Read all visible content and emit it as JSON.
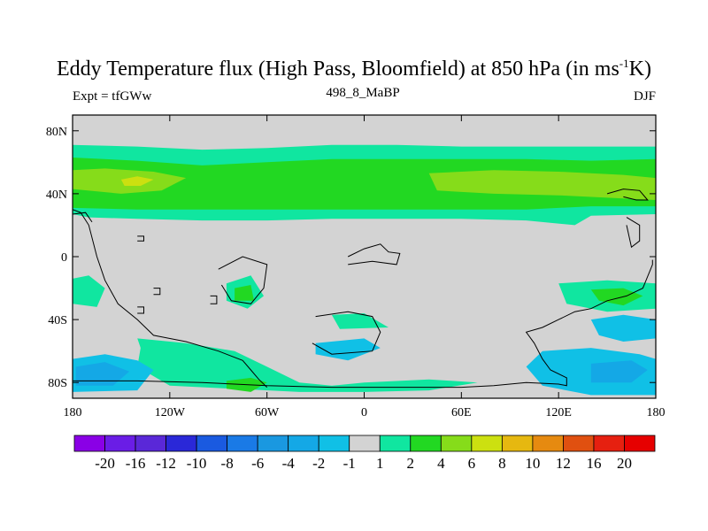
{
  "title": {
    "main": "Eddy Temperature flux (High Pass, Bloomfield) at 850 hPa (in ms",
    "sup": "-1",
    "tail": "K)"
  },
  "subtitles": {
    "left": "Expt = tfGWw",
    "center": "498_8_MaBP",
    "right": "DJF"
  },
  "chart_data": {
    "type": "heatmap",
    "title": "Eddy Temperature flux (High Pass, Bloomfield) at 850 hPa (in ms-1K)",
    "xlim": [
      -180,
      180
    ],
    "ylim": [
      -90,
      90
    ],
    "x_ticks": [
      {
        "value": -180,
        "label": "180"
      },
      {
        "value": -120,
        "label": "120W"
      },
      {
        "value": -60,
        "label": "60W"
      },
      {
        "value": 0,
        "label": "0"
      },
      {
        "value": 60,
        "label": "60E"
      },
      {
        "value": 120,
        "label": "120E"
      },
      {
        "value": 180,
        "label": "180"
      }
    ],
    "y_ticks": [
      {
        "value": 80,
        "label": "80N"
      },
      {
        "value": 40,
        "label": "40N"
      },
      {
        "value": 0,
        "label": "0"
      },
      {
        "value": -40,
        "label": "40S"
      },
      {
        "value": -80,
        "label": "80S"
      }
    ],
    "background_color": "#d3d3d3",
    "colorbar": {
      "labels": [
        "-20",
        "-16",
        "-12",
        "-10",
        "-8",
        "-6",
        "-4",
        "-2",
        "-1",
        "1",
        "2",
        "4",
        "6",
        "8",
        "10",
        "12",
        "16",
        "20"
      ],
      "colors": [
        "#8a00e6",
        "#6a1de6",
        "#5a28d8",
        "#2a28d8",
        "#1a5ae0",
        "#1a7ae6",
        "#1a98e0",
        "#14a8e6",
        "#10c0e6",
        "#d3d3d3",
        "#10e6a0",
        "#22d822",
        "#86dc1a",
        "#cce010",
        "#e6b810",
        "#e68a10",
        "#e05010",
        "#e62010",
        "#e60000"
      ]
    },
    "regions": [
      {
        "level": "1",
        "color": "#10e6a0",
        "points": [
          [
            -180,
            71
          ],
          [
            -140,
            70
          ],
          [
            -100,
            68
          ],
          [
            -60,
            69
          ],
          [
            -20,
            71
          ],
          [
            20,
            71
          ],
          [
            60,
            70
          ],
          [
            100,
            70
          ],
          [
            140,
            70
          ],
          [
            180,
            70
          ],
          [
            180,
            27
          ],
          [
            140,
            26
          ],
          [
            130,
            20
          ],
          [
            100,
            23
          ],
          [
            60,
            24
          ],
          [
            20,
            24
          ],
          [
            -20,
            24
          ],
          [
            -60,
            23
          ],
          [
            -100,
            23
          ],
          [
            -140,
            24
          ],
          [
            -170,
            25
          ],
          [
            -180,
            27
          ]
        ]
      },
      {
        "level": "2",
        "color": "#22d822",
        "points": [
          [
            -180,
            63
          ],
          [
            -140,
            61
          ],
          [
            -100,
            58
          ],
          [
            -60,
            60
          ],
          [
            -20,
            62
          ],
          [
            20,
            62
          ],
          [
            60,
            62
          ],
          [
            100,
            62
          ],
          [
            140,
            61
          ],
          [
            180,
            62
          ],
          [
            180,
            32
          ],
          [
            140,
            32
          ],
          [
            100,
            30
          ],
          [
            60,
            30
          ],
          [
            20,
            30
          ],
          [
            -20,
            30
          ],
          [
            -60,
            30
          ],
          [
            -100,
            30
          ],
          [
            -140,
            30
          ],
          [
            -180,
            31
          ]
        ]
      },
      {
        "level": "4",
        "color": "#86dc1a",
        "points": [
          [
            -180,
            55
          ],
          [
            -160,
            56
          ],
          [
            -130,
            54
          ],
          [
            -110,
            50
          ],
          [
            -125,
            42
          ],
          [
            -150,
            40
          ],
          [
            -180,
            43
          ]
        ]
      },
      {
        "level": "4",
        "color": "#86dc1a",
        "points": [
          [
            40,
            53
          ],
          [
            80,
            55
          ],
          [
            120,
            54
          ],
          [
            160,
            52
          ],
          [
            180,
            50
          ],
          [
            180,
            36
          ],
          [
            160,
            37
          ],
          [
            120,
            39
          ],
          [
            80,
            40
          ],
          [
            45,
            42
          ]
        ]
      },
      {
        "level": "6",
        "color": "#cce010",
        "points": [
          [
            -150,
            49
          ],
          [
            -140,
            51
          ],
          [
            -130,
            49
          ],
          [
            -138,
            45
          ],
          [
            -148,
            45
          ]
        ]
      },
      {
        "level": "1",
        "color": "#10e6a0",
        "points": [
          [
            -180,
            -14
          ],
          [
            -170,
            -12
          ],
          [
            -160,
            -20
          ],
          [
            -165,
            -32
          ],
          [
            -180,
            -30
          ]
        ]
      },
      {
        "level": "1",
        "color": "#10e6a0",
        "points": [
          [
            -85,
            -17
          ],
          [
            -70,
            -12
          ],
          [
            -62,
            -25
          ],
          [
            -72,
            -33
          ],
          [
            -85,
            -28
          ]
        ]
      },
      {
        "level": "2",
        "color": "#22d822",
        "points": [
          [
            -80,
            -20
          ],
          [
            -70,
            -18
          ],
          [
            -68,
            -28
          ],
          [
            -80,
            -28
          ]
        ]
      },
      {
        "level": "1",
        "color": "#10e6a0",
        "points": [
          [
            -20,
            -37
          ],
          [
            0,
            -36
          ],
          [
            15,
            -45
          ],
          [
            -15,
            -46
          ]
        ]
      },
      {
        "level": "1",
        "color": "#10e6a0",
        "points": [
          [
            120,
            -17
          ],
          [
            150,
            -15
          ],
          [
            180,
            -17
          ],
          [
            180,
            -33
          ],
          [
            150,
            -35
          ],
          [
            125,
            -30
          ]
        ]
      },
      {
        "level": "2",
        "color": "#22d822",
        "points": [
          [
            140,
            -21
          ],
          [
            160,
            -20
          ],
          [
            172,
            -25
          ],
          [
            160,
            -31
          ],
          [
            145,
            -28
          ]
        ]
      },
      {
        "level": "1",
        "color": "#10e6a0",
        "points": [
          [
            -140,
            -52
          ],
          [
            -110,
            -55
          ],
          [
            -80,
            -60
          ],
          [
            -60,
            -70
          ],
          [
            -40,
            -80
          ],
          [
            -20,
            -82
          ],
          [
            0,
            -80
          ],
          [
            40,
            -78
          ],
          [
            70,
            -80
          ],
          [
            40,
            -85
          ],
          [
            0,
            -86
          ],
          [
            -40,
            -86
          ],
          [
            -80,
            -84
          ],
          [
            -120,
            -82
          ],
          [
            -140,
            -70
          ],
          [
            -138,
            -58
          ]
        ]
      },
      {
        "level": "2",
        "color": "#22d822",
        "points": [
          [
            -85,
            -79
          ],
          [
            -70,
            -77
          ],
          [
            -60,
            -80
          ],
          [
            -70,
            -86
          ],
          [
            -85,
            -84
          ]
        ]
      },
      {
        "level": "-1",
        "color": "#10c0e6",
        "points": [
          [
            -180,
            -65
          ],
          [
            -160,
            -62
          ],
          [
            -140,
            -66
          ],
          [
            -130,
            -72
          ],
          [
            -140,
            -85
          ],
          [
            -180,
            -86
          ]
        ]
      },
      {
        "level": "-2",
        "color": "#14a8e6",
        "points": [
          [
            -178,
            -70
          ],
          [
            -160,
            -67
          ],
          [
            -145,
            -73
          ],
          [
            -155,
            -82
          ],
          [
            -178,
            -82
          ]
        ]
      },
      {
        "level": "-1",
        "color": "#10c0e6",
        "points": [
          [
            -30,
            -55
          ],
          [
            0,
            -52
          ],
          [
            10,
            -58
          ],
          [
            -10,
            -66
          ],
          [
            -30,
            -62
          ]
        ]
      },
      {
        "level": "-1",
        "color": "#10c0e6",
        "points": [
          [
            140,
            -40
          ],
          [
            160,
            -37
          ],
          [
            180,
            -40
          ],
          [
            180,
            -52
          ],
          [
            160,
            -54
          ],
          [
            145,
            -50
          ]
        ]
      },
      {
        "level": "-1",
        "color": "#10c0e6",
        "points": [
          [
            110,
            -60
          ],
          [
            140,
            -58
          ],
          [
            170,
            -62
          ],
          [
            180,
            -65
          ],
          [
            180,
            -88
          ],
          [
            140,
            -88
          ],
          [
            110,
            -82
          ],
          [
            100,
            -70
          ]
        ]
      },
      {
        "level": "-2",
        "color": "#14a8e6",
        "points": [
          [
            140,
            -68
          ],
          [
            165,
            -66
          ],
          [
            175,
            -72
          ],
          [
            165,
            -80
          ],
          [
            140,
            -80
          ]
        ]
      }
    ],
    "coastlines": [
      [
        [
          -180,
          -79
        ],
        [
          -140,
          -79
        ],
        [
          -100,
          -80
        ],
        [
          -60,
          -82
        ],
        [
          -20,
          -83
        ],
        [
          20,
          -83
        ],
        [
          60,
          -83
        ],
        [
          80,
          -82
        ],
        [
          100,
          -80
        ],
        [
          120,
          -81
        ],
        [
          125,
          -82
        ],
        [
          125,
          -77
        ],
        [
          115,
          -72
        ],
        [
          110,
          -65
        ],
        [
          105,
          -55
        ],
        [
          100,
          -48
        ],
        [
          110,
          -45
        ],
        [
          120,
          -40
        ],
        [
          130,
          -35
        ],
        [
          140,
          -33
        ],
        [
          150,
          -28
        ],
        [
          162,
          -25
        ],
        [
          172,
          -20
        ],
        [
          178,
          -5
        ],
        [
          178,
          -2
        ]
      ],
      [
        [
          -180,
          30
        ],
        [
          -175,
          28
        ],
        [
          -170,
          20
        ],
        [
          -165,
          0
        ],
        [
          -160,
          -15
        ],
        [
          -152,
          -30
        ],
        [
          -140,
          -40
        ],
        [
          -130,
          -50
        ],
        [
          -110,
          -54
        ],
        [
          -90,
          -60
        ],
        [
          -75,
          -66
        ],
        [
          -70,
          -72
        ],
        [
          -65,
          -78
        ],
        [
          -60,
          -83
        ]
      ],
      [
        [
          -90,
          -8
        ],
        [
          -75,
          0
        ],
        [
          -60,
          -5
        ],
        [
          -62,
          -20
        ],
        [
          -70,
          -30
        ],
        [
          -82,
          -28
        ],
        [
          -88,
          -18
        ]
      ],
      [
        [
          -10,
          0
        ],
        [
          0,
          5
        ],
        [
          10,
          8
        ],
        [
          15,
          3
        ],
        [
          22,
          2
        ],
        [
          20,
          -5
        ],
        [
          5,
          -3
        ],
        [
          -10,
          -5
        ]
      ],
      [
        [
          -30,
          -38
        ],
        [
          -10,
          -35
        ],
        [
          5,
          -38
        ],
        [
          10,
          -48
        ],
        [
          5,
          -60
        ],
        [
          -20,
          -62
        ],
        [
          -32,
          -55
        ]
      ],
      [
        [
          150,
          40
        ],
        [
          160,
          43
        ],
        [
          170,
          42
        ],
        [
          175,
          36
        ],
        [
          168,
          36
        ],
        [
          160,
          38
        ]
      ],
      [
        [
          -180,
          27
        ],
        [
          -172,
          28
        ],
        [
          -168,
          22
        ]
      ],
      [
        [
          162,
          25
        ],
        [
          170,
          20
        ],
        [
          170,
          10
        ],
        [
          165,
          6
        ],
        [
          162,
          20
        ]
      ],
      [
        [
          -140,
          13
        ],
        [
          -136,
          13
        ],
        [
          -136,
          10
        ],
        [
          -140,
          10
        ]
      ],
      [
        [
          -130,
          -20
        ],
        [
          -126,
          -20
        ],
        [
          -126,
          -24
        ],
        [
          -130,
          -24
        ]
      ],
      [
        [
          -95,
          -25
        ],
        [
          -91,
          -25
        ],
        [
          -91,
          -30
        ],
        [
          -95,
          -30
        ]
      ],
      [
        [
          -140,
          -32
        ],
        [
          -136,
          -32
        ],
        [
          -136,
          -36
        ],
        [
          -140,
          -36
        ]
      ]
    ]
  }
}
